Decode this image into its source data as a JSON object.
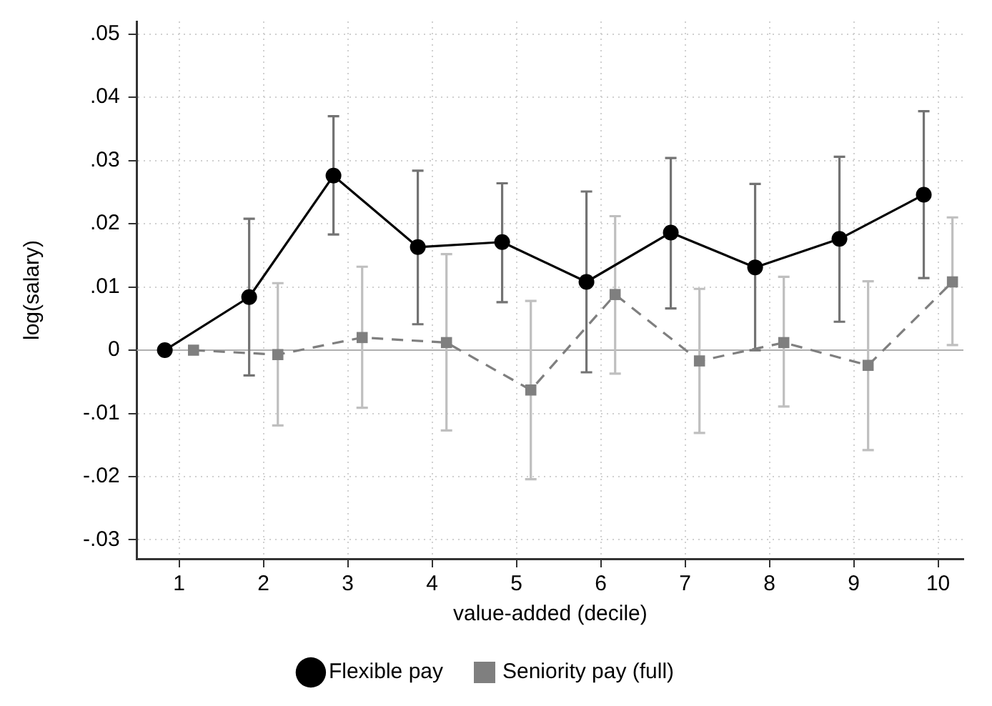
{
  "chart_data": {
    "type": "line",
    "xlabel": "value-added (decile)",
    "ylabel": "log(salary)",
    "xlim": [
      0.5,
      10.3
    ],
    "xticks": [
      1,
      2,
      3,
      4,
      5,
      6,
      7,
      8,
      9,
      10
    ],
    "ylim": [
      -0.033,
      0.052
    ],
    "yticks": [
      {
        "value": -0.03,
        "label": "-.03"
      },
      {
        "value": -0.02,
        "label": "-.02"
      },
      {
        "value": -0.01,
        "label": "-.01"
      },
      0,
      {
        "value": 0.01,
        "label": ".01"
      },
      {
        "value": 0.02,
        "label": ".02"
      },
      {
        "value": 0.03,
        "label": ".03"
      },
      {
        "value": 0.04,
        "label": ".04"
      },
      {
        "value": 0.05,
        "label": ".05"
      }
    ],
    "grid": true,
    "legend": "bottom",
    "ref_lines": [
      {
        "axis": "y",
        "value": 0,
        "color": "#b0b0b0"
      }
    ],
    "series": [
      {
        "name": "Flexible pay",
        "color": "#000000",
        "marker": "circle",
        "line_style": "solid",
        "x": [
          0.83,
          1.83,
          2.83,
          3.83,
          4.83,
          5.83,
          6.83,
          7.83,
          8.83,
          9.83
        ],
        "values": [
          0,
          0.0084,
          0.0276,
          0.0163,
          0.0171,
          0.0108,
          0.0186,
          0.0131,
          0.0176,
          0.0246
        ],
        "errors": [
          null,
          [
            -0.004,
            0.0208
          ],
          [
            0.0183,
            0.037
          ],
          [
            0.0041,
            0.0284
          ],
          [
            0.0076,
            0.0264
          ],
          [
            -0.0035,
            0.0251
          ],
          [
            0.0066,
            0.0304
          ],
          [
            0,
            0.0263
          ],
          [
            0.0045,
            0.0306
          ],
          [
            0.0114,
            0.0378
          ]
        ]
      },
      {
        "name": "Seniority pay (full)",
        "color": "#7f7f7f",
        "marker": "square",
        "line_style": "dashed",
        "x": [
          1.17,
          2.17,
          3.17,
          4.17,
          5.17,
          6.17,
          7.17,
          8.17,
          9.17,
          10.17
        ],
        "values": [
          0,
          -0.0007,
          0.002,
          0.0012,
          -0.0063,
          0.0088,
          -0.0017,
          0.0012,
          -0.0024,
          0.0108
        ],
        "errors": [
          null,
          [
            -0.0119,
            0.0106
          ],
          [
            -0.0091,
            0.0132
          ],
          [
            -0.0127,
            0.0152
          ],
          [
            -0.0204,
            0.0078
          ],
          [
            -0.0037,
            0.0212
          ],
          [
            -0.0131,
            0.0097
          ],
          [
            -0.0089,
            0.0116
          ],
          [
            -0.0158,
            0.0109
          ],
          [
            0.0008,
            0.021
          ]
        ]
      }
    ]
  }
}
